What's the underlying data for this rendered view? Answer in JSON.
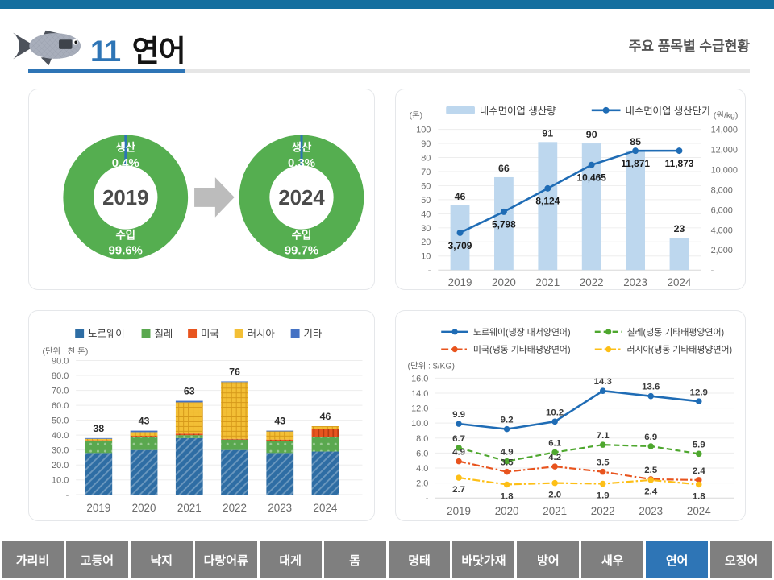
{
  "header": {
    "number": "11",
    "title": "연어",
    "subtitle": "주요 품목별 수급현황"
  },
  "colors": {
    "top_strip": "#156f9f",
    "accent_blue": "#2e75b6",
    "tab_gray": "#7f7f7f",
    "tab_active": "#2e75b6",
    "arrow_gray": "#bcbcbc",
    "donut_green": "#55ae50",
    "bar_light_blue": "#bdd7ee",
    "line_blue": "#1f6cb5"
  },
  "tabs": {
    "items": [
      "가리비",
      "고등어",
      "낙지",
      "다랑어류",
      "대게",
      "돔",
      "명태",
      "바닷가재",
      "방어",
      "새우",
      "연어",
      "오징어"
    ],
    "active": "연어"
  },
  "chart_data": [
    {
      "id": "supply-share-donuts",
      "type": "pie",
      "donuts": [
        {
          "year": "2019",
          "segments": [
            {
              "label": "생산",
              "value": 0.4,
              "display": "0.4%",
              "color": "#2e75b6"
            },
            {
              "label": "수입",
              "value": 99.6,
              "display": "99.6%",
              "color": "#55ae50"
            }
          ]
        },
        {
          "year": "2024",
          "segments": [
            {
              "label": "생산",
              "value": 0.3,
              "display": "0.3%",
              "color": "#2e75b6"
            },
            {
              "label": "수입",
              "value": 99.7,
              "display": "99.7%",
              "color": "#55ae50"
            }
          ]
        }
      ]
    },
    {
      "id": "inland-production",
      "type": "bar+line",
      "categories": [
        "2019",
        "2020",
        "2021",
        "2022",
        "2023",
        "2024"
      ],
      "left_axis": {
        "unit": "(톤)",
        "max": 100,
        "step": 10
      },
      "right_axis": {
        "unit": "(원/kg)",
        "max": 14000,
        "step": 2000
      },
      "series": [
        {
          "name": "내수면어업 생산량",
          "chart": "bar",
          "axis": "left",
          "color": "#bdd7ee",
          "values": [
            46,
            66,
            91,
            90,
            85,
            23
          ]
        },
        {
          "name": "내수면어업 생산단가",
          "chart": "line",
          "axis": "right",
          "color": "#1f6cb5",
          "values": [
            3709,
            5798,
            8124,
            10465,
            11871,
            11873
          ],
          "labels": [
            "3,709",
            "5,798",
            "8,124",
            "10,465",
            "11,871",
            "11,873"
          ]
        }
      ]
    },
    {
      "id": "imports-by-country",
      "type": "bar",
      "stacked": true,
      "unit": "(단위 : 천 톤)",
      "categories": [
        "2019",
        "2020",
        "2021",
        "2022",
        "2023",
        "2024"
      ],
      "y_axis": {
        "max": 90,
        "step": 10
      },
      "totals": [
        38,
        43,
        63,
        76,
        43,
        46
      ],
      "series": [
        {
          "name": "노르웨이",
          "color": "#2e6da4",
          "pattern": "diag",
          "values": [
            28,
            30,
            38,
            30,
            28,
            29
          ]
        },
        {
          "name": "칠레",
          "color": "#5aa84f",
          "pattern": "dots",
          "values": [
            8,
            9,
            2,
            7,
            8,
            10
          ]
        },
        {
          "name": "미국",
          "color": "#e8541e",
          "pattern": "vlines",
          "values": [
            0.5,
            0.5,
            1,
            0.5,
            1,
            5
          ]
        },
        {
          "name": "러시아",
          "color": "#f3bf35",
          "pattern": "grid",
          "values": [
            1,
            2.5,
            21,
            38,
            5.5,
            2
          ]
        },
        {
          "name": "기타",
          "color": "#4472c4",
          "pattern": null,
          "values": [
            0.5,
            1,
            1,
            0.5,
            0.5,
            0
          ]
        }
      ]
    },
    {
      "id": "import-unit-price",
      "type": "line",
      "unit": "(단위 : $/KG)",
      "categories": [
        "2019",
        "2020",
        "2021",
        "2022",
        "2023",
        "2024"
      ],
      "y_axis": {
        "max": 16,
        "step": 2
      },
      "series": [
        {
          "name": "노르웨이(냉장 대서양연어)",
          "color": "#1f6cb5",
          "style": "solid",
          "label_pos": "above",
          "values": [
            9.9,
            9.2,
            10.2,
            14.3,
            13.6,
            12.9
          ]
        },
        {
          "name": "칠레(냉동 기타태평양연어)",
          "color": "#4ea72e",
          "style": "dashed",
          "label_pos": "above",
          "values": [
            6.7,
            4.9,
            6.1,
            7.1,
            6.9,
            5.9
          ]
        },
        {
          "name": "미국(냉동 기타태평양연어)",
          "color": "#e8541e",
          "style": "dashdot",
          "label_pos": "above",
          "values": [
            4.9,
            3.5,
            4.2,
            3.5,
            2.5,
            2.4
          ]
        },
        {
          "name": "러시아(냉동 기타태평양연어)",
          "color": "#fdbf17",
          "style": "dashdot",
          "label_pos": "below",
          "values": [
            2.7,
            1.8,
            2.0,
            1.9,
            2.4,
            1.8
          ]
        }
      ]
    }
  ]
}
